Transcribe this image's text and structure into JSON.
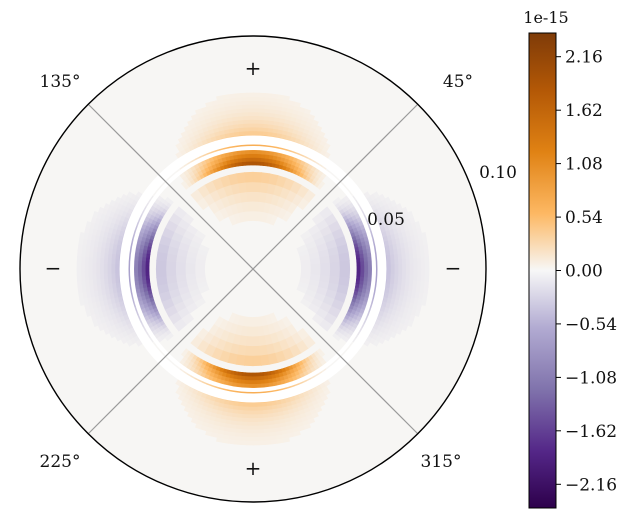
{
  "chart_data": {
    "type": "heatmap",
    "projection": "polar",
    "title": "",
    "colormap": "PuOr_r (purple negative, white zero, orange positive)",
    "colors": {
      "positive_max": "#7f3b08",
      "positive_mid": "#f39c3a",
      "zero": "#f7f6f4",
      "negative_mid": "#8d7fbc",
      "negative_max": "#2d004b",
      "gridline": "#9a9a9a",
      "axis": "#000000"
    },
    "theta_tick_labels": [
      "45°",
      "135°",
      "225°",
      "315°"
    ],
    "radial_tick_labels": [
      "0.05",
      "0.10"
    ],
    "radial_ticks": [
      0.05,
      0.1
    ],
    "radial_range": [
      0,
      0.13
    ],
    "grid": true,
    "sign_annotations": [
      {
        "text": "+",
        "angle_deg": 90
      },
      {
        "text": "−",
        "angle_deg": 0
      },
      {
        "text": "+",
        "angle_deg": 270
      },
      {
        "text": "−",
        "angle_deg": 180
      }
    ],
    "field_pattern": "quadrupole: positive near 90° and 270°, negative near 0° and 180°, peak just outside the inner ring, decaying outward",
    "inner_ring_radii": [
      0.054,
      0.058
    ],
    "colorbar": {
      "offset_label": "1e-15",
      "range": [
        -2.4,
        2.4
      ],
      "tick_values": [
        2.16,
        1.62,
        1.08,
        0.54,
        0.0,
        -0.54,
        -1.08,
        -1.62,
        -2.16
      ],
      "tick_labels": [
        "2.16",
        "1.62",
        "1.08",
        "0.54",
        "0.00",
        "−0.54",
        "−1.08",
        "−1.62",
        "−2.16"
      ],
      "orientation": "vertical",
      "placement": "right"
    }
  }
}
